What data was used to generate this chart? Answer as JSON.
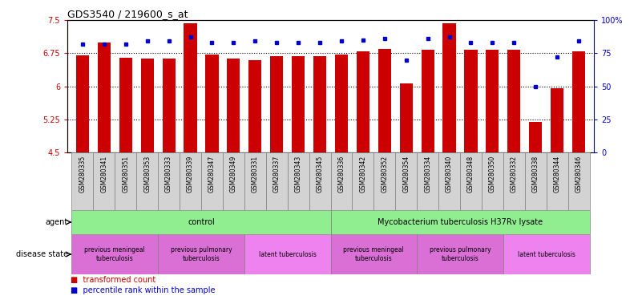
{
  "title": "GDS3540 / 219600_s_at",
  "samples": [
    "GSM280335",
    "GSM280341",
    "GSM280351",
    "GSM280353",
    "GSM280333",
    "GSM280339",
    "GSM280347",
    "GSM280349",
    "GSM280331",
    "GSM280337",
    "GSM280343",
    "GSM280345",
    "GSM280336",
    "GSM280342",
    "GSM280352",
    "GSM280354",
    "GSM280334",
    "GSM280340",
    "GSM280348",
    "GSM280350",
    "GSM280332",
    "GSM280338",
    "GSM280344",
    "GSM280346"
  ],
  "transformed_counts": [
    6.7,
    7.0,
    6.65,
    6.63,
    6.63,
    7.43,
    6.71,
    6.62,
    6.6,
    6.68,
    6.68,
    6.68,
    6.72,
    6.8,
    6.84,
    6.07,
    6.82,
    7.43,
    6.82,
    6.82,
    6.82,
    5.2,
    5.96,
    6.8
  ],
  "percentile_ranks": [
    82,
    82,
    82,
    84,
    84,
    87,
    83,
    83,
    84,
    83,
    83,
    83,
    84,
    85,
    86,
    70,
    86,
    87,
    83,
    83,
    83,
    50,
    72,
    84
  ],
  "ymin": 4.5,
  "ymax": 7.5,
  "yticks": [
    4.5,
    5.25,
    6.0,
    6.75,
    7.5
  ],
  "ytick_labels": [
    "4.5",
    "5.25",
    "6",
    "6.75",
    "7.5"
  ],
  "right_yticks": [
    0,
    25,
    50,
    75,
    100
  ],
  "right_ytick_labels": [
    "0",
    "25",
    "50",
    "75",
    "100%"
  ],
  "bar_color": "#cc0000",
  "dot_color": "#0000cc",
  "bar_width": 0.6,
  "agent_groups": [
    {
      "label": "control",
      "start": 0,
      "end": 11,
      "color": "#90ee90"
    },
    {
      "label": "Mycobacterium tuberculosis H37Rv lysate",
      "start": 12,
      "end": 23,
      "color": "#90ee90"
    }
  ],
  "disease_groups": [
    {
      "label": "previous meningeal\ntuberculosis",
      "start": 0,
      "end": 3,
      "color": "#da70d6"
    },
    {
      "label": "previous pulmonary\ntuberculosis",
      "start": 4,
      "end": 7,
      "color": "#da70d6"
    },
    {
      "label": "latent tuberculosis",
      "start": 8,
      "end": 11,
      "color": "#ee82ee"
    },
    {
      "label": "previous meningeal\ntuberculosis",
      "start": 12,
      "end": 15,
      "color": "#da70d6"
    },
    {
      "label": "previous pulmonary\ntuberculosis",
      "start": 16,
      "end": 19,
      "color": "#da70d6"
    },
    {
      "label": "latent tuberculosis",
      "start": 20,
      "end": 23,
      "color": "#ee82ee"
    }
  ],
  "dotted_lines": [
    5.25,
    6.0,
    6.75
  ],
  "background_color": "#ffffff",
  "bar_label_color": "#cc0000",
  "right_label_color": "#0000cc",
  "legend_red_label": "transformed count",
  "legend_blue_label": "percentile rank within the sample",
  "agent_row_label": "agent",
  "disease_row_label": "disease state",
  "xtick_bg_color": "#d3d3d3",
  "xtick_border_color": "#808080"
}
